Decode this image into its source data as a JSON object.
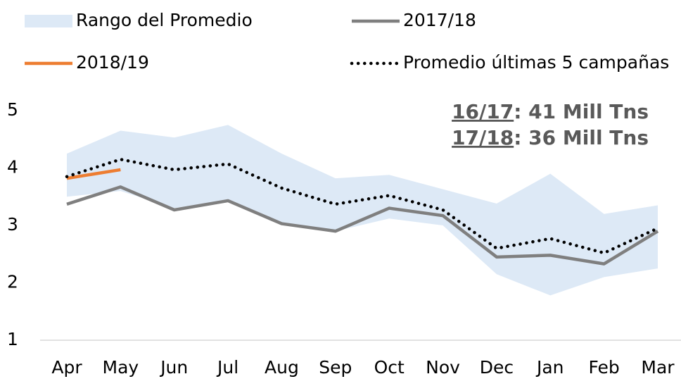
{
  "chart_data": {
    "type": "line",
    "categories": [
      "Apr",
      "May",
      "Jun",
      "Jul",
      "Aug",
      "Sep",
      "Oct",
      "Nov",
      "Dec",
      "Jan",
      "Feb",
      "Mar"
    ],
    "ylim": [
      1,
      5
    ],
    "yticks": [
      1,
      2,
      3,
      4,
      5
    ],
    "series": [
      {
        "name": "Rango del Promedio",
        "kind": "range",
        "color": "#dde9f6",
        "low": [
          3.5,
          3.6,
          3.3,
          3.45,
          3.05,
          2.9,
          3.12,
          3.0,
          2.15,
          1.78,
          2.1,
          2.25
        ],
        "high": [
          4.25,
          4.65,
          4.53,
          4.75,
          4.25,
          3.82,
          3.88,
          3.63,
          3.38,
          3.9,
          3.2,
          3.35
        ]
      },
      {
        "name": "2017/18",
        "kind": "solid",
        "color": "#7f7f7f",
        "values": [
          3.37,
          3.67,
          3.27,
          3.43,
          3.03,
          2.9,
          3.3,
          3.17,
          2.45,
          2.48,
          2.33,
          2.9
        ]
      },
      {
        "name": "2018/19",
        "kind": "solid",
        "color": "#ed7d31",
        "values": [
          3.82,
          3.97,
          null,
          null,
          null,
          null,
          null,
          null,
          null,
          null,
          null,
          null
        ]
      },
      {
        "name": "Promedio últimas 5 campañas",
        "kind": "dotted",
        "color": "#000000",
        "values": [
          3.85,
          4.15,
          3.97,
          4.07,
          3.65,
          3.37,
          3.52,
          3.27,
          2.6,
          2.77,
          2.52,
          2.95
        ]
      }
    ],
    "annotations": [
      {
        "label": "16/17",
        "text": ": 41 Mill Tns"
      },
      {
        "label": "17/18",
        "text": ": 36 Mill Tns"
      }
    ]
  }
}
